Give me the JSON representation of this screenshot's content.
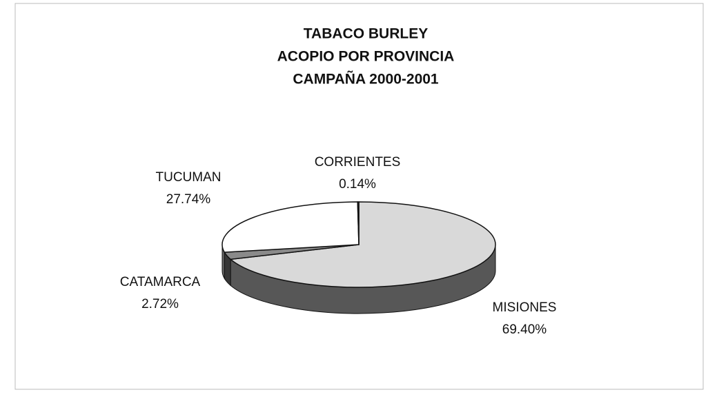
{
  "chart_data": {
    "type": "pie3d",
    "title": [
      "TABACO BURLEY",
      "ACOPIO POR PROVINCIA",
      "CAMPAÑA 2000-2001"
    ],
    "categories": [
      "MISIONES",
      "CATAMARCA",
      "TUCUMAN",
      "CORRIENTES"
    ],
    "values": [
      69.4,
      2.72,
      27.74,
      0.14
    ],
    "value_labels": [
      "69.40%",
      "2.72%",
      "27.74%",
      "0.14%"
    ],
    "colors": [
      "#d9d9d9",
      "#8a8a8a",
      "#ffffff",
      "#505050"
    ]
  }
}
